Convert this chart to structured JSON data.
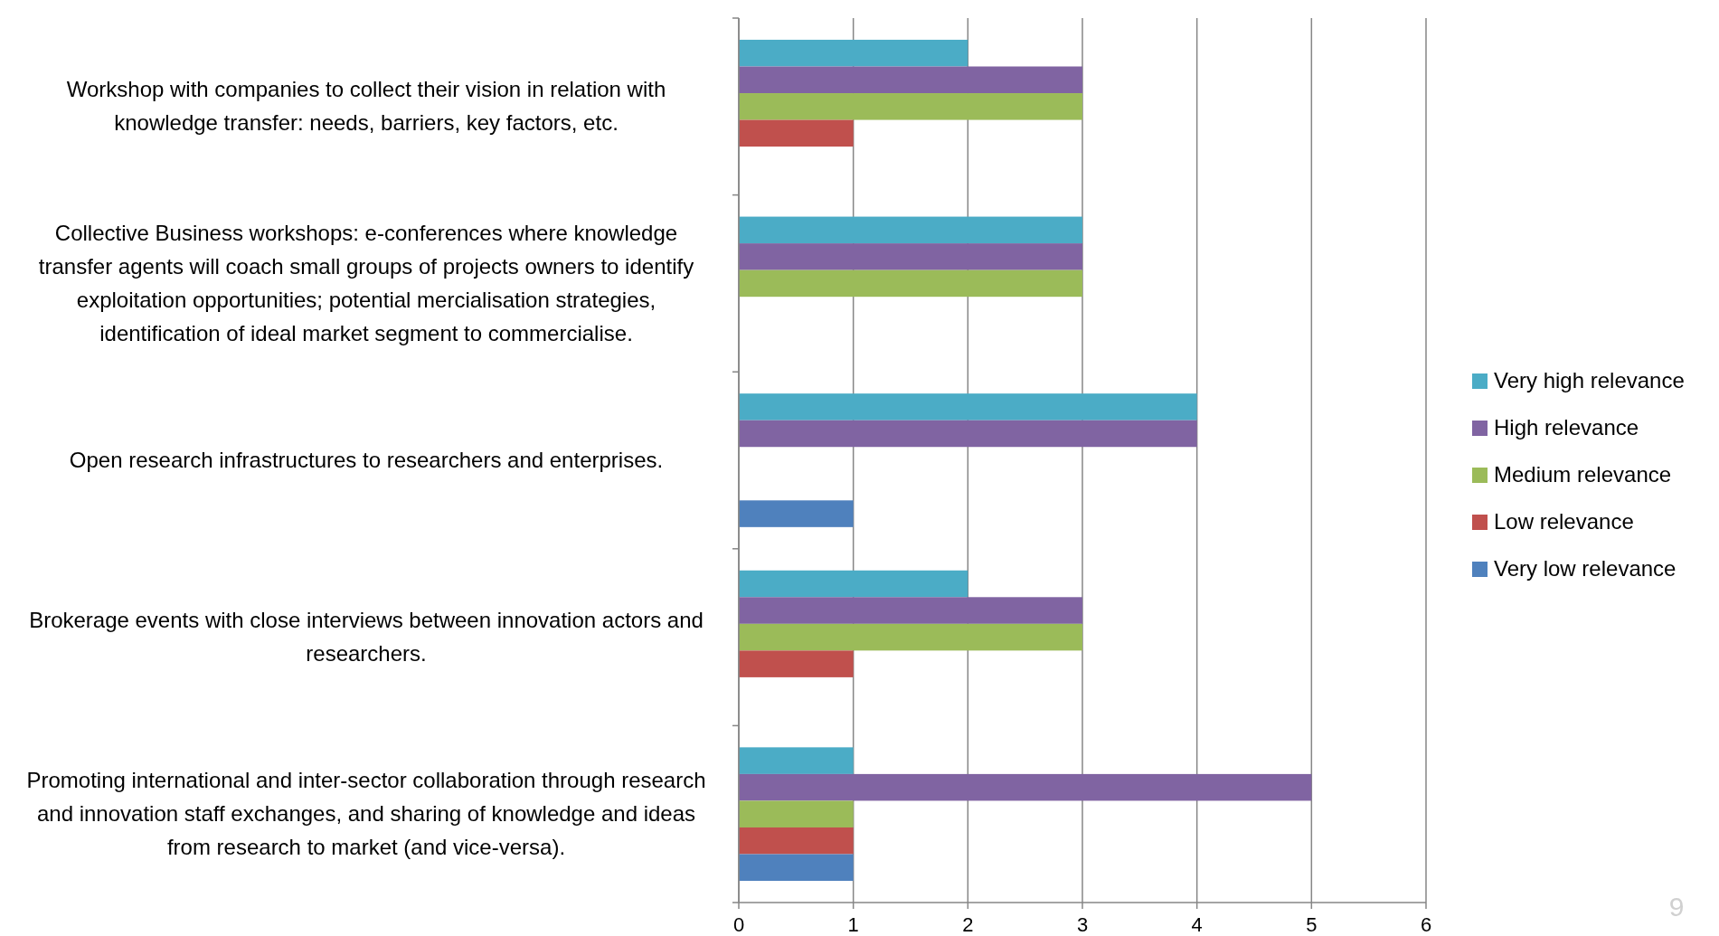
{
  "chart_data": {
    "type": "bar",
    "orientation": "horizontal",
    "categories": [
      "Workshop with companies to collect their vision in relation with knowledge transfer: needs, barriers, key factors, etc.",
      "Collective Business workshops: e-conferences where knowledge transfer agents will coach small groups of projects owners to identify exploitation opportunities; potential mercialisation strategies, identification of ideal market segment to commercialise.",
      "Open research infrastructures to researchers and enterprises.",
      "Brokerage events with close interviews between innovation actors and researchers.",
      "Promoting international and inter-sector collaboration through research and innovation staff exchanges, and sharing of knowledge and ideas from research to market (and vice-versa)."
    ],
    "series": [
      {
        "name": "Very high relevance",
        "color": "#4bacc6",
        "values": [
          2,
          3,
          4,
          2,
          1
        ]
      },
      {
        "name": "High relevance",
        "color": "#8064a2",
        "values": [
          3,
          3,
          4,
          3,
          5
        ]
      },
      {
        "name": "Medium relevance",
        "color": "#9bbb59",
        "values": [
          3,
          3,
          null,
          3,
          1
        ]
      },
      {
        "name": "Low relevance",
        "color": "#c0504d",
        "values": [
          1,
          null,
          null,
          1,
          1
        ]
      },
      {
        "name": "Very low relevance",
        "color": "#4f81bd",
        "values": [
          null,
          null,
          1,
          null,
          1
        ]
      }
    ],
    "xlim": [
      0,
      6
    ],
    "xticks": [
      0,
      1,
      2,
      3,
      4,
      5,
      6
    ],
    "grid": "x",
    "legend": "right",
    "annotations": [
      "9"
    ]
  }
}
